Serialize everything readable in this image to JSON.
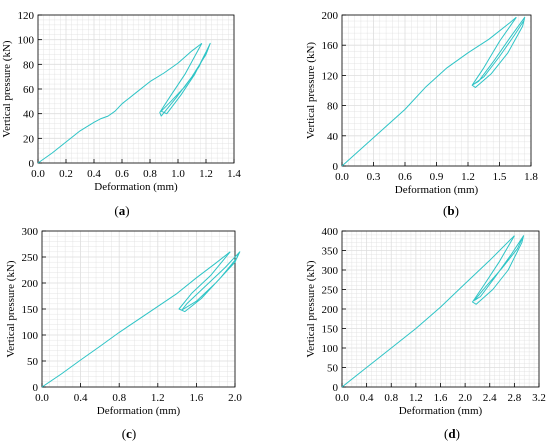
{
  "colors": {
    "curve": "#2ec4c6",
    "grid": "#dedede",
    "axis": "#000000"
  },
  "chart_data": [
    {
      "type": "line",
      "caption": "a",
      "xlabel": "Deformation (mm)",
      "ylabel": "Vertical pressure (kN)",
      "xlim": [
        0,
        1.4
      ],
      "ylim": [
        0,
        120
      ],
      "xticks": [
        "0.0",
        "0.2",
        "0.4",
        "0.6",
        "0.8",
        "1.0",
        "1.2",
        "1.4"
      ],
      "yticks": [
        "0",
        "20",
        "40",
        "60",
        "80",
        "100",
        "120"
      ],
      "xtick_values": [
        0,
        0.2,
        0.4,
        0.6,
        0.8,
        1.0,
        1.2,
        1.4
      ],
      "ytick_values": [
        0,
        20,
        40,
        60,
        80,
        100,
        120
      ],
      "grid": true,
      "series": [
        {
          "x": [
            0,
            0.1,
            0.2,
            0.3,
            0.4,
            0.45,
            0.5,
            0.55,
            0.6,
            0.7,
            0.8,
            0.9,
            1.0,
            1.1,
            1.17
          ],
          "y": [
            0,
            8,
            17,
            26,
            33,
            36,
            38,
            42,
            48,
            57,
            66,
            73,
            81,
            91,
            97
          ]
        },
        {
          "x": [
            1.17,
            1.05,
            0.95,
            0.87,
            0.88,
            0.98,
            1.1,
            1.2,
            1.23,
            1.15,
            1.05,
            0.95,
            0.88,
            0.92,
            1.02,
            1.12,
            1.2
          ],
          "y": [
            97,
            72,
            55,
            41,
            38,
            52,
            70,
            88,
            97,
            78,
            62,
            50,
            42,
            40,
            55,
            72,
            90
          ]
        }
      ]
    },
    {
      "type": "line",
      "caption": "b",
      "xlabel": "Deformation (mm)",
      "ylabel": "Vertical pressure (kN)",
      "xlim": [
        0,
        1.8
      ],
      "ylim": [
        0,
        200
      ],
      "xticks": [
        "0.0",
        "0.3",
        "0.6",
        "0.9",
        "1.2",
        "1.5",
        "1.8"
      ],
      "yticks": [
        "0",
        "40",
        "80",
        "120",
        "160",
        "200"
      ],
      "xtick_values": [
        0,
        0.3,
        0.6,
        0.9,
        1.2,
        1.5,
        1.8
      ],
      "ytick_values": [
        0,
        40,
        80,
        120,
        160,
        200
      ],
      "grid": true,
      "series": [
        {
          "x": [
            0,
            0.2,
            0.4,
            0.6,
            0.8,
            1.0,
            1.2,
            1.4,
            1.6,
            1.66
          ],
          "y": [
            0,
            25,
            50,
            75,
            105,
            130,
            150,
            168,
            190,
            197
          ]
        },
        {
          "x": [
            1.66,
            1.5,
            1.35,
            1.24,
            1.27,
            1.42,
            1.58,
            1.72,
            1.74,
            1.6,
            1.45,
            1.3,
            1.25,
            1.35,
            1.5,
            1.65,
            1.73
          ],
          "y": [
            197,
            165,
            130,
            107,
            104,
            122,
            150,
            185,
            197,
            170,
            140,
            112,
            108,
            118,
            145,
            175,
            192
          ]
        }
      ]
    },
    {
      "type": "line",
      "caption": "c",
      "xlabel": "Deformation (mm)",
      "ylabel": "Vertical pressure (kN)",
      "xlim": [
        0,
        2.0
      ],
      "ylim": [
        0,
        300
      ],
      "xticks": [
        "0.0",
        "0.4",
        "0.8",
        "1.2",
        "1.6",
        "2.0"
      ],
      "yticks": [
        "0",
        "50",
        "100",
        "150",
        "200",
        "250",
        "300"
      ],
      "xtick_values": [
        0,
        0.4,
        0.8,
        1.2,
        1.6,
        2.0
      ],
      "ytick_values": [
        0,
        50,
        100,
        150,
        200,
        250,
        300
      ],
      "grid": true,
      "series": [
        {
          "x": [
            0,
            0.2,
            0.4,
            0.6,
            0.8,
            1.0,
            1.2,
            1.4,
            1.6,
            1.8,
            1.95
          ],
          "y": [
            0,
            25,
            52,
            78,
            105,
            130,
            155,
            180,
            210,
            238,
            260
          ]
        },
        {
          "x": [
            1.95,
            1.75,
            1.55,
            1.42,
            1.48,
            1.65,
            1.85,
            2.02,
            2.05,
            1.9,
            1.7,
            1.5,
            1.45,
            1.6,
            1.8,
            2.0,
            2.04
          ],
          "y": [
            260,
            215,
            180,
            150,
            145,
            170,
            210,
            248,
            260,
            230,
            195,
            160,
            148,
            165,
            200,
            240,
            258
          ]
        }
      ]
    },
    {
      "type": "line",
      "caption": "d",
      "xlabel": "Deformation (mm)",
      "ylabel": "Vertical pressure (kN)",
      "xlim": [
        0,
        3.2
      ],
      "ylim": [
        0,
        400
      ],
      "xticks": [
        "0.0",
        "0.4",
        "0.8",
        "1.2",
        "1.6",
        "2.0",
        "2.4",
        "2.8",
        "3.2"
      ],
      "yticks": [
        "0",
        "50",
        "100",
        "150",
        "200",
        "250",
        "300",
        "350",
        "400"
      ],
      "xtick_values": [
        0,
        0.4,
        0.8,
        1.2,
        1.6,
        2.0,
        2.4,
        2.8,
        3.2
      ],
      "ytick_values": [
        0,
        50,
        100,
        150,
        200,
        250,
        300,
        350,
        400
      ],
      "grid": true,
      "series": [
        {
          "x": [
            0,
            0.4,
            0.8,
            1.2,
            1.6,
            2.0,
            2.4,
            2.8
          ],
          "y": [
            0,
            50,
            100,
            150,
            205,
            265,
            325,
            388
          ]
        },
        {
          "x": [
            2.8,
            2.55,
            2.3,
            2.12,
            2.18,
            2.45,
            2.7,
            2.92,
            2.95,
            2.75,
            2.5,
            2.25,
            2.15,
            2.35,
            2.6,
            2.85,
            2.93
          ],
          "y": [
            388,
            320,
            260,
            218,
            212,
            250,
            300,
            370,
            388,
            340,
            285,
            232,
            222,
            260,
            305,
            355,
            382
          ]
        }
      ]
    }
  ]
}
